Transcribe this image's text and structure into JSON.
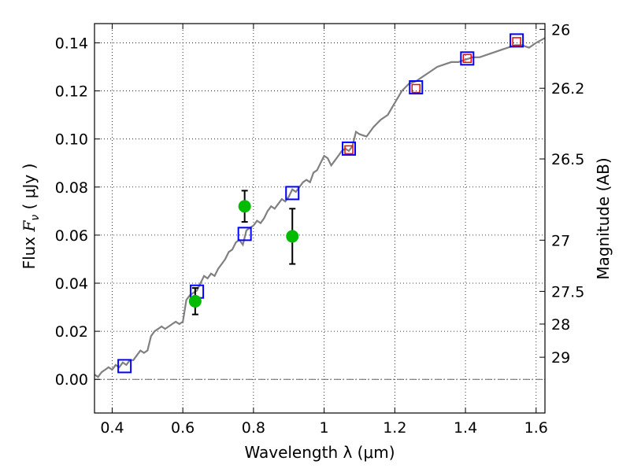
{
  "chart_data": {
    "type": "line",
    "xlabel": "Wavelength  λ (μm)",
    "ylabel_prefix": "Flux  ",
    "ylabel_symbol": "F",
    "ylabel_subscript": "ν",
    "ylabel_units": "  ( μJy )",
    "y2label": "Magnitude (AB)",
    "xlim": [
      0.35,
      1.625
    ],
    "ylim": [
      -0.014,
      0.148
    ],
    "grid": true,
    "xticks": [
      0.4,
      0.6,
      0.8,
      1.0,
      1.2,
      1.4,
      1.6
    ],
    "xtick_labels": [
      "0.4",
      "0.6",
      "0.8",
      "1",
      "1.2",
      "1.4",
      "1.6"
    ],
    "yticks": [
      0.0,
      0.02,
      0.04,
      0.06,
      0.08,
      0.1,
      0.12,
      0.14
    ],
    "ytick_labels": [
      "0.00",
      "0.02",
      "0.04",
      "0.06",
      "0.08",
      "0.10",
      "0.12",
      "0.14"
    ],
    "y2ticks": [
      {
        "label": "26",
        "flux": 0.1456
      },
      {
        "label": "26.2",
        "flux": 0.1211
      },
      {
        "label": "26.5",
        "flux": 0.0917
      },
      {
        "label": "27",
        "flux": 0.0579
      },
      {
        "label": "27.5",
        "flux": 0.0366
      },
      {
        "label": "28",
        "flux": 0.023
      },
      {
        "label": "29",
        "flux": 0.0092
      }
    ],
    "series": [
      {
        "kind": "model-sed",
        "color": "#808080",
        "x": [
          0.35,
          0.36,
          0.37,
          0.38,
          0.39,
          0.4,
          0.41,
          0.42,
          0.43,
          0.44,
          0.45,
          0.46,
          0.47,
          0.48,
          0.49,
          0.5,
          0.51,
          0.52,
          0.53,
          0.54,
          0.55,
          0.56,
          0.57,
          0.58,
          0.59,
          0.6,
          0.61,
          0.62,
          0.63,
          0.64,
          0.65,
          0.66,
          0.67,
          0.68,
          0.69,
          0.7,
          0.71,
          0.72,
          0.73,
          0.74,
          0.75,
          0.76,
          0.77,
          0.78,
          0.79,
          0.8,
          0.81,
          0.82,
          0.83,
          0.84,
          0.85,
          0.86,
          0.87,
          0.88,
          0.89,
          0.9,
          0.91,
          0.92,
          0.93,
          0.94,
          0.95,
          0.96,
          0.97,
          0.98,
          0.99,
          1.0,
          1.01,
          1.02,
          1.03,
          1.04,
          1.05,
          1.06,
          1.07,
          1.08,
          1.09,
          1.1,
          1.12,
          1.14,
          1.16,
          1.18,
          1.2,
          1.22,
          1.24,
          1.26,
          1.28,
          1.3,
          1.32,
          1.34,
          1.36,
          1.38,
          1.4,
          1.42,
          1.44,
          1.46,
          1.48,
          1.5,
          1.52,
          1.54,
          1.56,
          1.58,
          1.6,
          1.625
        ],
        "y": [
          0.002,
          0.001,
          0.003,
          0.004,
          0.005,
          0.004,
          0.006,
          0.005,
          0.007,
          0.006,
          0.008,
          0.008,
          0.01,
          0.012,
          0.011,
          0.012,
          0.018,
          0.02,
          0.021,
          0.022,
          0.021,
          0.022,
          0.023,
          0.024,
          0.023,
          0.024,
          0.033,
          0.035,
          0.036,
          0.037,
          0.04,
          0.043,
          0.042,
          0.044,
          0.043,
          0.046,
          0.048,
          0.05,
          0.053,
          0.054,
          0.057,
          0.058,
          0.056,
          0.062,
          0.063,
          0.064,
          0.066,
          0.065,
          0.067,
          0.07,
          0.072,
          0.071,
          0.073,
          0.075,
          0.074,
          0.076,
          0.079,
          0.078,
          0.08,
          0.082,
          0.083,
          0.082,
          0.086,
          0.087,
          0.09,
          0.093,
          0.092,
          0.089,
          0.091,
          0.093,
          0.095,
          0.096,
          0.095,
          0.097,
          0.103,
          0.102,
          0.101,
          0.105,
          0.108,
          0.11,
          0.115,
          0.12,
          0.123,
          0.124,
          0.126,
          0.128,
          0.13,
          0.131,
          0.132,
          0.132,
          0.133,
          0.134,
          0.134,
          0.135,
          0.136,
          0.137,
          0.138,
          0.139,
          0.139,
          0.138,
          0.14,
          0.142
        ]
      },
      {
        "kind": "model-photometry",
        "marker": "open-square",
        "color": "#0000ff",
        "x": [
          0.435,
          0.64,
          0.775,
          0.91,
          1.07,
          1.26,
          1.405,
          1.545
        ],
        "y": [
          0.0055,
          0.0365,
          0.0605,
          0.0775,
          0.096,
          0.1215,
          0.1335,
          0.141
        ]
      },
      {
        "kind": "observed-flux",
        "marker": "open-square-small",
        "color": "#ff0000",
        "x": [
          1.07,
          1.26,
          1.405,
          1.545
        ],
        "y": [
          0.0955,
          0.121,
          0.1335,
          0.1405
        ]
      },
      {
        "kind": "detections",
        "marker": "filled-circle",
        "color": "#00bb00",
        "x": [
          0.635,
          0.775,
          0.91
        ],
        "y": [
          0.0325,
          0.072,
          0.0595
        ],
        "yerr": [
          0.0055,
          0.0065,
          0.0115
        ]
      }
    ]
  }
}
